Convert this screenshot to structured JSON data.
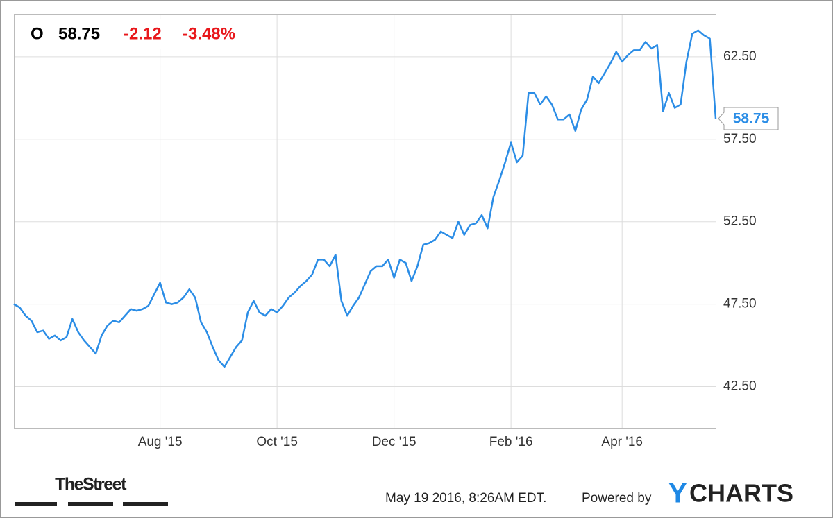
{
  "header": {
    "symbol": "O",
    "price": 58.75,
    "change": -2.12,
    "change_percent": "-3.48%"
  },
  "chart_data": {
    "type": "line",
    "categories": [
      null,
      null,
      null,
      null,
      null,
      null,
      null,
      null,
      null,
      null,
      null,
      null,
      null,
      null,
      null,
      null,
      null,
      null,
      null,
      null,
      null,
      null,
      null,
      null,
      null,
      "Aug '15",
      null,
      null,
      null,
      null,
      null,
      null,
      null,
      null,
      null,
      null,
      null,
      null,
      null,
      null,
      null,
      null,
      null,
      null,
      null,
      "Oct '15",
      null,
      null,
      null,
      null,
      null,
      null,
      null,
      null,
      null,
      null,
      null,
      null,
      null,
      null,
      null,
      null,
      null,
      null,
      null,
      "Dec '15",
      null,
      null,
      null,
      null,
      null,
      null,
      null,
      null,
      null,
      null,
      null,
      null,
      null,
      null,
      null,
      null,
      null,
      null,
      null,
      "Feb '16",
      null,
      null,
      null,
      null,
      null,
      null,
      null,
      null,
      null,
      null,
      null,
      null,
      null,
      null,
      null,
      null,
      null,
      null,
      "Apr '16",
      null,
      null,
      null,
      null,
      null,
      null,
      null,
      null,
      null,
      null,
      null,
      null,
      null,
      null,
      null,
      null
    ],
    "series": [
      {
        "color": "#2b8de6",
        "values": [
          47.5,
          47.3,
          46.8,
          46.5,
          45.8,
          45.9,
          45.4,
          45.6,
          45.3,
          45.5,
          46.6,
          45.8,
          45.3,
          44.9,
          44.5,
          45.6,
          46.2,
          46.5,
          46.4,
          46.8,
          47.2,
          47.1,
          47.2,
          47.4,
          48.1,
          48.8,
          47.6,
          47.5,
          47.6,
          47.9,
          48.4,
          47.9,
          46.4,
          45.8,
          44.9,
          44.1,
          43.7,
          44.3,
          44.9,
          45.3,
          47.0,
          47.7,
          47.0,
          46.8,
          47.2,
          47.0,
          47.4,
          47.9,
          48.2,
          48.6,
          48.9,
          49.3,
          50.2,
          50.2,
          49.8,
          50.5,
          47.7,
          46.8,
          47.4,
          47.9,
          48.7,
          49.5,
          49.8,
          49.8,
          50.2,
          49.1,
          50.2,
          50.0,
          48.9,
          49.8,
          51.1,
          51.2,
          51.4,
          51.9,
          51.7,
          51.5,
          52.5,
          51.7,
          52.3,
          52.4,
          52.9,
          52.1,
          54.0,
          55.0,
          56.1,
          57.3,
          56.1,
          56.5,
          60.3,
          60.3,
          59.6,
          60.1,
          59.6,
          58.7,
          58.7,
          59.0,
          58.0,
          59.3,
          59.9,
          61.3,
          60.9,
          61.5,
          62.1,
          62.8,
          62.2,
          62.6,
          62.9,
          62.9,
          63.4,
          63.0,
          63.2,
          59.2,
          60.3,
          59.4,
          59.6,
          62.2,
          63.9,
          64.1,
          63.8,
          63.6,
          58.75
        ]
      }
    ],
    "ylim": [
      40,
      65.1
    ],
    "yticks": [
      {
        "value": 42.5,
        "label": "42.50"
      },
      {
        "value": 47.5,
        "label": "47.50"
      },
      {
        "value": 52.5,
        "label": "52.50"
      },
      {
        "value": 57.5,
        "label": "57.50"
      },
      {
        "value": 62.5,
        "label": "62.50"
      }
    ],
    "grid": true
  },
  "footer": {
    "source_logo": "TheStreet",
    "timestamp": "May 19 2016, 8:26AM EDT.",
    "powered_by": "Powered by",
    "brand": {
      "first": "Y",
      "rest": "CHARTS"
    }
  }
}
